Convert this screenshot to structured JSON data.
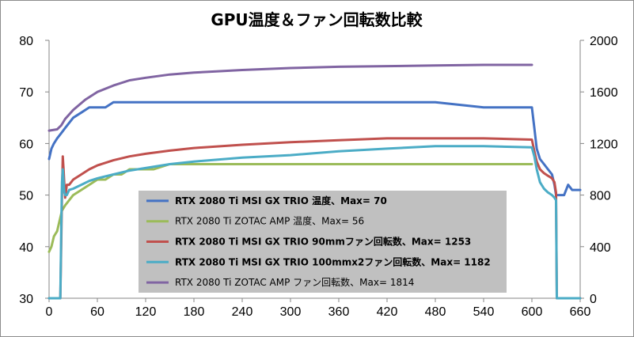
{
  "chart_data": {
    "type": "line",
    "title": "GPU温度＆ファン回転数比較",
    "xlabel": "",
    "ylabel": "",
    "y2label": "",
    "xlim": [
      0,
      660
    ],
    "ylim": [
      30,
      80
    ],
    "y2lim": [
      0,
      2000
    ],
    "x_ticks": [
      "0",
      "60",
      "120",
      "180",
      "240",
      "300",
      "360",
      "420",
      "480",
      "540",
      "600",
      "660"
    ],
    "y_ticks": [
      "80",
      "70",
      "60",
      "50",
      "40",
      "30"
    ],
    "y2_ticks": [
      "2000",
      "1600",
      "1200",
      "800",
      "400",
      "0"
    ],
    "grid": false,
    "legend_position": "center",
    "legend_background": "#c0c0c0",
    "series": [
      {
        "name": "RTX 2080 Ti MSI GX TRIO 温度、Max= 70",
        "axis": "left",
        "color": "#4472c4",
        "bold": true,
        "x": [
          0,
          3,
          6,
          10,
          15,
          20,
          25,
          30,
          40,
          50,
          60,
          70,
          80,
          90,
          100,
          120,
          150,
          180,
          240,
          300,
          360,
          420,
          480,
          540,
          600,
          603,
          606,
          610,
          615,
          620,
          625,
          628,
          630,
          632,
          635,
          640,
          645,
          650,
          655,
          660
        ],
        "y": [
          57,
          59,
          60,
          61,
          62,
          63,
          64,
          65,
          66,
          67,
          67,
          67,
          68,
          68,
          68,
          68,
          68,
          68,
          68,
          68,
          68,
          68,
          68,
          67,
          67,
          63,
          59,
          57,
          56,
          55,
          54,
          52,
          50,
          50,
          50,
          50,
          52,
          51,
          51,
          51
        ]
      },
      {
        "name": "RTX 2080 Ti ZOTAC AMP 温度、Max= 56",
        "axis": "left",
        "color": "#9bbb59",
        "bold": false,
        "x": [
          0,
          3,
          6,
          10,
          13,
          16,
          20,
          25,
          30,
          40,
          50,
          60,
          70,
          80,
          90,
          100,
          110,
          130,
          150,
          180,
          240,
          300,
          360,
          420,
          480,
          540,
          600
        ],
        "y": [
          39,
          40,
          42,
          43,
          45,
          47,
          48,
          49,
          50,
          51,
          52,
          53,
          53,
          54,
          54,
          55,
          55,
          55,
          56,
          56,
          56,
          56,
          56,
          56,
          56,
          56,
          56
        ]
      },
      {
        "name": "RTX 2080 Ti MSI GX TRIO 90mmファン回転数、Max= 1253",
        "axis": "right",
        "color": "#c0504d",
        "bold": true,
        "x": [
          0,
          14,
          15,
          16,
          17,
          18,
          19,
          20,
          22,
          25,
          30,
          40,
          50,
          60,
          80,
          100,
          120,
          150,
          180,
          240,
          300,
          360,
          420,
          480,
          540,
          600,
          603,
          606,
          610,
          615,
          620,
          625,
          628,
          630,
          631,
          632,
          660
        ],
        "y": [
          0,
          0,
          400,
          800,
          1100,
          1000,
          880,
          780,
          880,
          880,
          920,
          960,
          1000,
          1030,
          1070,
          1100,
          1120,
          1145,
          1165,
          1190,
          1210,
          1225,
          1240,
          1240,
          1240,
          1230,
          1140,
          1060,
          1000,
          970,
          950,
          930,
          900,
          820,
          0,
          0,
          0
        ]
      },
      {
        "name": "RTX 2080 Ti MSI GX TRIO 100mmx2ファン回転数、Max= 1182",
        "axis": "right",
        "color": "#4bacc6",
        "bold": true,
        "x": [
          0,
          14,
          15,
          16,
          17,
          18,
          19,
          20,
          22,
          25,
          30,
          40,
          50,
          60,
          80,
          100,
          120,
          150,
          180,
          240,
          300,
          360,
          420,
          480,
          540,
          600,
          603,
          606,
          610,
          615,
          620,
          625,
          628,
          630,
          631,
          632,
          660
        ],
        "y": [
          0,
          0,
          500,
          900,
          1000,
          900,
          820,
          800,
          800,
          840,
          850,
          880,
          910,
          930,
          960,
          990,
          1010,
          1040,
          1060,
          1090,
          1110,
          1140,
          1160,
          1180,
          1180,
          1170,
          1100,
          1000,
          900,
          850,
          820,
          800,
          780,
          760,
          0,
          0,
          0
        ]
      },
      {
        "name": "RTX 2080 Ti ZOTAC AMP ファン回転数、Max= 1814",
        "axis": "right",
        "color": "#8064a2",
        "bold": false,
        "x": [
          0,
          10,
          15,
          20,
          30,
          45,
          60,
          80,
          100,
          120,
          150,
          180,
          210,
          240,
          300,
          360,
          420,
          480,
          540,
          600
        ],
        "y": [
          1300,
          1310,
          1340,
          1390,
          1460,
          1540,
          1600,
          1650,
          1690,
          1710,
          1735,
          1750,
          1760,
          1770,
          1785,
          1795,
          1800,
          1805,
          1810,
          1810
        ]
      }
    ]
  }
}
